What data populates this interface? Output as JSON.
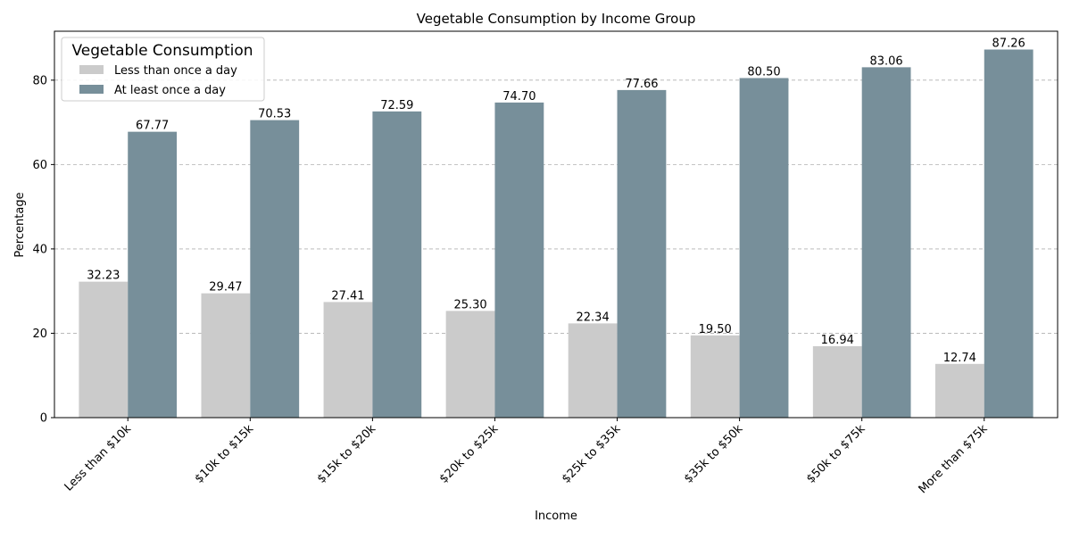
{
  "chart_data": {
    "type": "bar",
    "title": "Vegetable Consumption by Income Group",
    "xlabel": "Income",
    "ylabel": "Percentage",
    "categories": [
      "Less than $10k",
      "$10k to $15k",
      "$15k to $20k",
      "$20k to $25k",
      "$25k to $35k",
      "$35k to $50k",
      "$50k to $75k",
      "More than $75k"
    ],
    "series": [
      {
        "name": "Less than once a day",
        "color": "#cbcbcb",
        "values": [
          32.23,
          29.47,
          27.41,
          25.3,
          22.34,
          19.5,
          16.94,
          12.74
        ]
      },
      {
        "name": "At least once a day",
        "color": "#778f9a",
        "values": [
          67.77,
          70.53,
          72.59,
          74.7,
          77.66,
          80.5,
          83.06,
          87.26
        ]
      }
    ],
    "ylim": [
      0,
      91.6
    ],
    "yticks": [
      0,
      20,
      40,
      60,
      80
    ],
    "grid": "y-dashed",
    "legend": {
      "title": "Vegetable Consumption",
      "placement": "top-left"
    },
    "value_format": "2 decimals"
  }
}
